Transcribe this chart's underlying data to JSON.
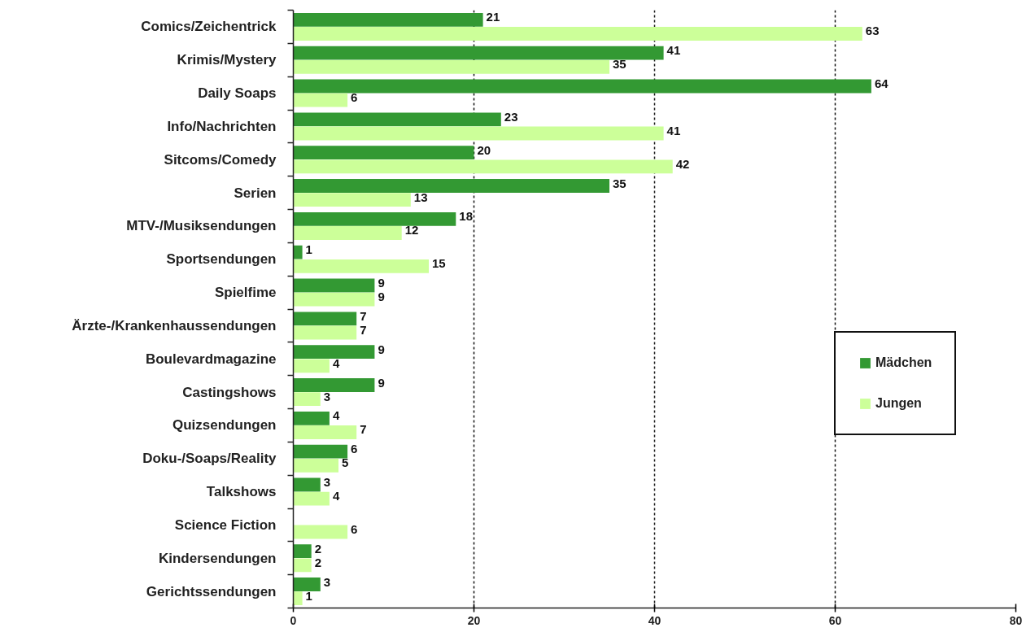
{
  "chart_data": {
    "type": "bar",
    "orientation": "horizontal",
    "categories": [
      "Comics/Zeichentrick",
      "Krimis/Mystery",
      "Daily Soaps",
      "Info/Nachrichten",
      "Sitcoms/Comedy",
      "Serien",
      "MTV-/Musiksendungen",
      "Sportsendungen",
      "Spielfime",
      "Ärzte-/Krankenhaussendungen",
      "Boulevardmagazine",
      "Castingshows",
      "Quizsendungen",
      "Doku-/Soaps/Reality",
      "Talkshows",
      "Science Fiction",
      "Kindersendungen",
      "Gerichtssendungen"
    ],
    "series": [
      {
        "name": "Mädchen",
        "color": "#339933",
        "values": [
          21,
          41,
          64,
          23,
          20,
          35,
          18,
          1,
          9,
          7,
          9,
          9,
          4,
          6,
          3,
          null,
          2,
          3
        ]
      },
      {
        "name": "Jungen",
        "color": "#ccff99",
        "values": [
          63,
          35,
          6,
          41,
          42,
          13,
          12,
          15,
          9,
          7,
          4,
          3,
          7,
          5,
          4,
          6,
          2,
          1
        ]
      }
    ],
    "xlim": [
      0,
      80
    ],
    "xticks": [
      0,
      20,
      40,
      60,
      80
    ],
    "grid": "x",
    "legend": "right",
    "data_labels": true
  }
}
